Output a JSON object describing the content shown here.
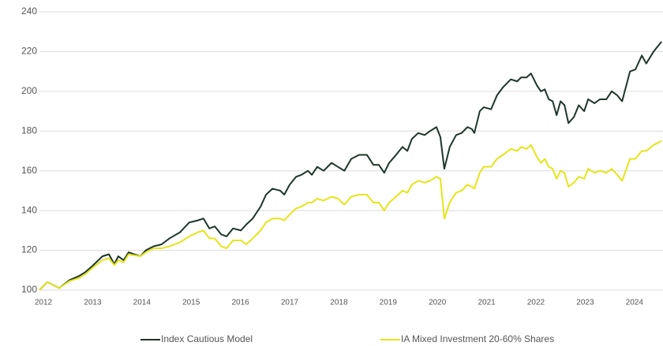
{
  "chart_data": {
    "type": "line",
    "x": [
      2011.92,
      2012.08,
      2012.32,
      2012.53,
      2012.72,
      2012.85,
      2012.99,
      2013.2,
      2013.33,
      2013.44,
      2013.52,
      2013.63,
      2013.73,
      2013.84,
      2013.97,
      2014.08,
      2014.24,
      2014.4,
      2014.56,
      2014.77,
      2014.96,
      2015.13,
      2015.25,
      2015.37,
      2015.48,
      2015.61,
      2015.72,
      2015.85,
      2016.01,
      2016.12,
      2016.25,
      2016.41,
      2016.52,
      2016.65,
      2016.81,
      2016.89,
      2017,
      2017.13,
      2017.24,
      2017.37,
      2017.45,
      2017.56,
      2017.69,
      2017.85,
      2017.98,
      2018.11,
      2018.25,
      2018.41,
      2018.57,
      2018.7,
      2018.81,
      2018.92,
      2019.02,
      2019.16,
      2019.29,
      2019.39,
      2019.48,
      2019.61,
      2019.74,
      2019.85,
      2019.98,
      2020.06,
      2020.14,
      2020.25,
      2020.38,
      2020.49,
      2020.61,
      2020.7,
      2020.75,
      2020.86,
      2020.94,
      2021.09,
      2021.21,
      2021.33,
      2021.49,
      2021.62,
      2021.7,
      2021.81,
      2021.9,
      2022.02,
      2022.1,
      2022.18,
      2022.26,
      2022.34,
      2022.42,
      2022.5,
      2022.58,
      2022.66,
      2022.77,
      2022.87,
      2022.98,
      2023.06,
      2023.19,
      2023.3,
      2023.43,
      2023.54,
      2023.65,
      2023.75,
      2023.91,
      2024.02,
      2024.15,
      2024.24,
      2024.39,
      2024.55
    ],
    "series": [
      {
        "name": "Index Cautious Model",
        "color": "#1e3629",
        "values": [
          100,
          104,
          101,
          105,
          107,
          109,
          112,
          117,
          118,
          113,
          117,
          115,
          119,
          118,
          117,
          120,
          122,
          123,
          126,
          129,
          134,
          135,
          136,
          131,
          132,
          128,
          127,
          131,
          130,
          133,
          136,
          142,
          148,
          151,
          150,
          148,
          153,
          157,
          158,
          160,
          158,
          162,
          160,
          164,
          162,
          160,
          166,
          168,
          168,
          163,
          163,
          159,
          164,
          168,
          172,
          170,
          176,
          179,
          178,
          180,
          182,
          177,
          161,
          172,
          178,
          179,
          182,
          181,
          179,
          190,
          192,
          191,
          198,
          202,
          206,
          205,
          207,
          207,
          209,
          203,
          200,
          201,
          196,
          195,
          188,
          195,
          193,
          184,
          187,
          193,
          190,
          196,
          194,
          196,
          196,
          200,
          198,
          195,
          210,
          211,
          218,
          214,
          220,
          225
        ]
      },
      {
        "name": "IA Mixed Investment 20-60% Shares",
        "color": "#e5e51a",
        "values": [
          100,
          104,
          101,
          104.5,
          106,
          108,
          111,
          115,
          116,
          112.5,
          115,
          114,
          118,
          117.5,
          117,
          119,
          121,
          121,
          122,
          124,
          127,
          129,
          130,
          126,
          126,
          122,
          121,
          125,
          125,
          123,
          126,
          130,
          134,
          136,
          136,
          135,
          138,
          141,
          142,
          144,
          144,
          146,
          145,
          147,
          146,
          143,
          147,
          148,
          148,
          144,
          144,
          140,
          144,
          147,
          150,
          149,
          153,
          155,
          154,
          155,
          157,
          156,
          136,
          144,
          149,
          150,
          153,
          152,
          151,
          159,
          162,
          162,
          166,
          168,
          171,
          170,
          172,
          171,
          173,
          167,
          164,
          166,
          162,
          161,
          156,
          160,
          159,
          152,
          154,
          157,
          156,
          161,
          159,
          160,
          159,
          161,
          158,
          155,
          166,
          166,
          170,
          170,
          173,
          175
        ]
      }
    ],
    "xlim": [
      2011.92,
      2024.58
    ],
    "xticks": [
      2012,
      2013,
      2014,
      2015,
      2016,
      2017,
      2018,
      2019,
      2020,
      2021,
      2022,
      2023,
      2024
    ],
    "ylim": [
      100,
      240
    ],
    "yticks": [
      100,
      120,
      140,
      160,
      180,
      200,
      220,
      240
    ],
    "grid": true,
    "legend": "bottom"
  }
}
